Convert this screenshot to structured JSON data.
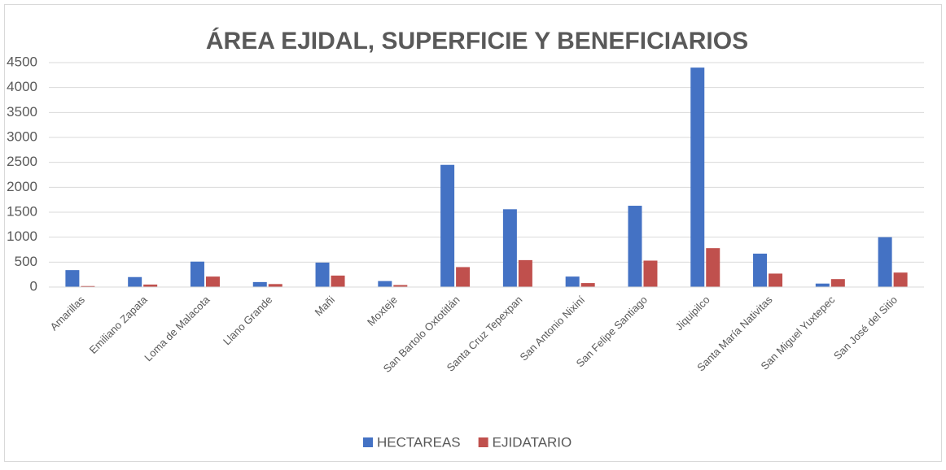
{
  "chart_data": {
    "type": "bar",
    "title": "ÁREA EJIDAL, SUPERFICIE Y BENEFICIARIOS",
    "categories": [
      "Amarillas",
      "Emiliano Zapata",
      "Loma de Malacota",
      "Llano Grande",
      "Mañi",
      "Moxteje",
      "San Bartolo Oxtotitlán",
      "Santa Cruz Tepexpan",
      "San Antonio Nixiní",
      "San Felipe Santiago",
      "Jiquipilco",
      "Santa María Nativitas",
      "San Miguel Yuxtepec",
      "San José del Sitio"
    ],
    "series": [
      {
        "name": "HECTAREAS",
        "color": "#4472c4",
        "values": [
          340,
          200,
          510,
          100,
          490,
          120,
          2450,
          1560,
          210,
          1630,
          4400,
          670,
          70,
          1000
        ]
      },
      {
        "name": "EJIDATARIO",
        "color": "#c0504d",
        "values": [
          20,
          50,
          210,
          60,
          230,
          40,
          400,
          540,
          80,
          530,
          780,
          270,
          160,
          290
        ]
      }
    ],
    "ylim": [
      0,
      4500
    ],
    "yticks": [
      0,
      500,
      1000,
      1500,
      2000,
      2500,
      3000,
      3500,
      4000,
      4500
    ],
    "grid": true,
    "legend": "bottom"
  }
}
